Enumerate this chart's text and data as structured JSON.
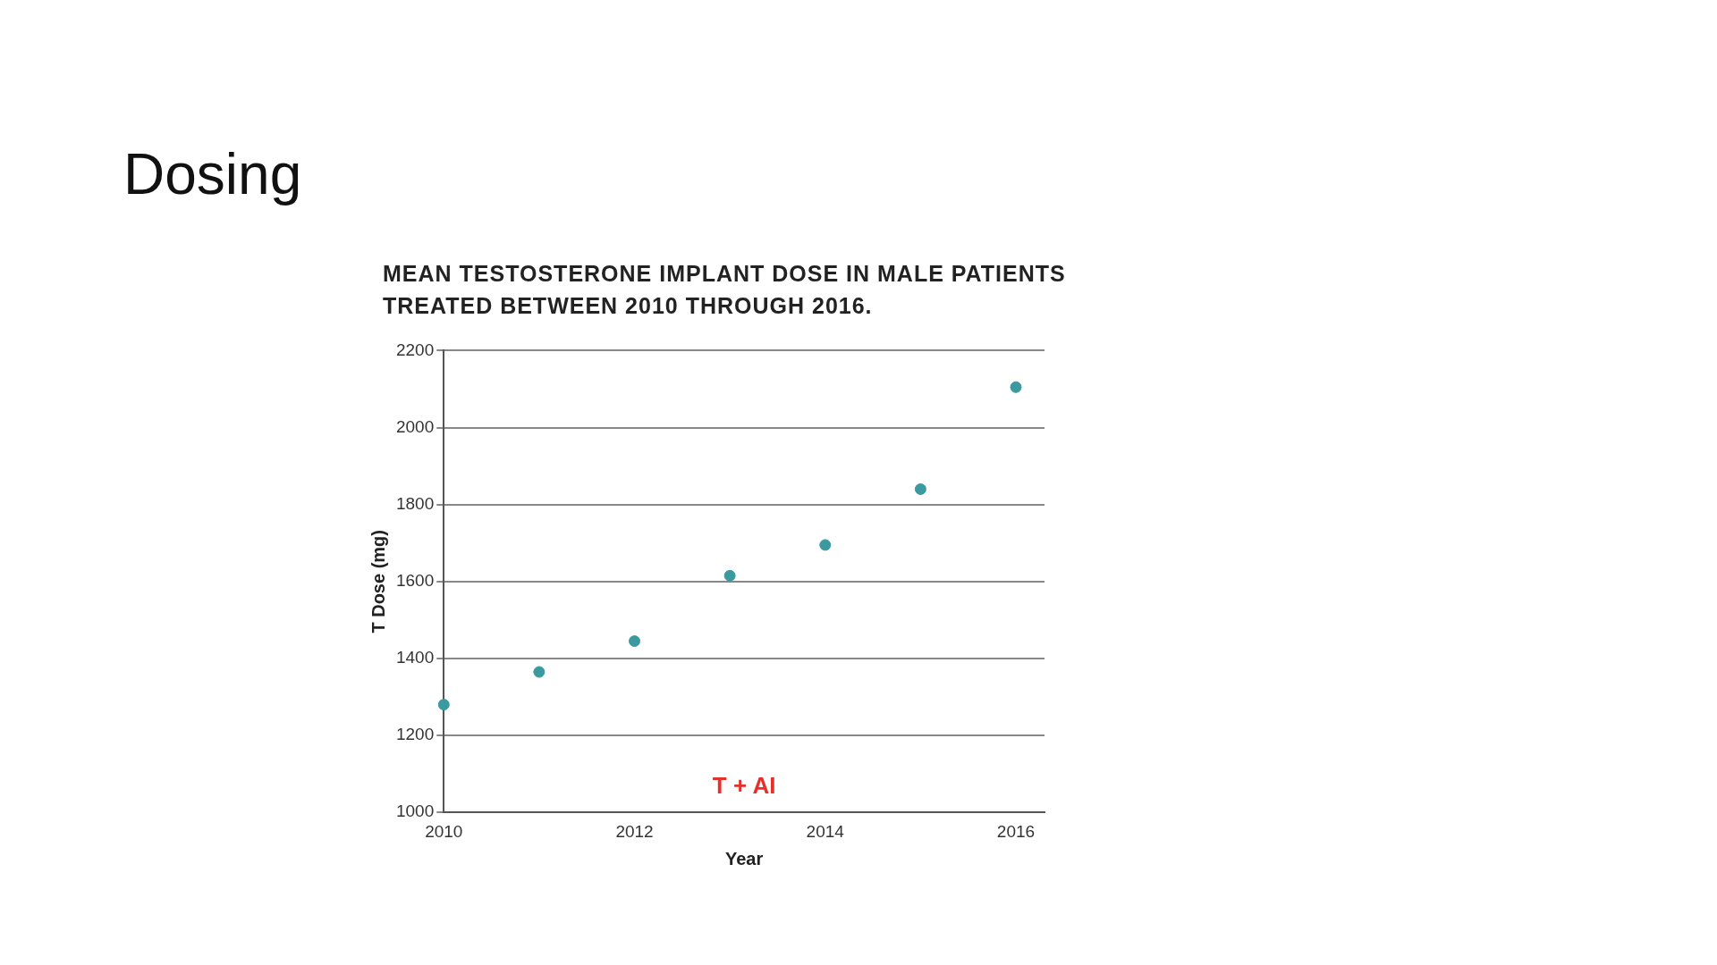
{
  "chart_data": {
    "type": "scatter",
    "title": "Dosing",
    "subtitle": "MEAN TESTOSTERONE IMPLANT DOSE IN MALE PATIENTS TREATED BETWEEN 2010 THROUGH 2016.",
    "xlabel": "Year",
    "ylabel": "T Dose (mg)",
    "x": [
      2010,
      2011,
      2012,
      2013,
      2014,
      2015,
      2016
    ],
    "series": [
      {
        "color": "#3a9a9f",
        "values": [
          1280,
          1365,
          1445,
          1615,
          1695,
          1840,
          2105
        ]
      }
    ],
    "xlim": [
      2010,
      2016.3
    ],
    "xticks": [
      2010,
      2012,
      2014,
      2016
    ],
    "ylim": [
      1000,
      2200
    ],
    "yticks": [
      1000,
      1200,
      1400,
      1600,
      1800,
      2000,
      2200
    ],
    "grid": "y",
    "marker": "circle",
    "legend": false,
    "annotations": [
      "T + AI"
    ]
  }
}
